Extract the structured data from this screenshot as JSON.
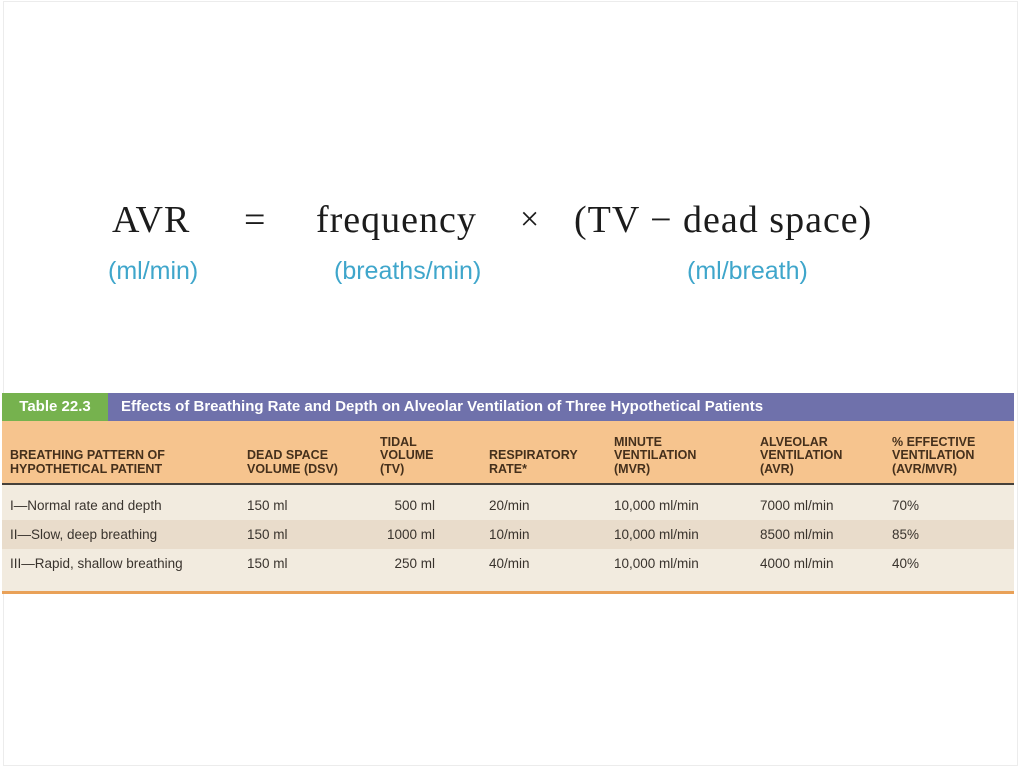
{
  "formula": {
    "result": "AVR",
    "equals_sign": "=",
    "factor1": "frequency",
    "multiply_sign": "×",
    "factor2": "(TV − dead space)",
    "result_unit": "(ml/min)",
    "factor1_unit": "(breaths/min)",
    "factor2_unit": "(ml/breath)",
    "unit_color": "#3fa6cb"
  },
  "table": {
    "label": "Table 22.3",
    "title": "Effects of Breathing Rate and Depth on Alveolar Ventilation of Three Hypothetical Patients",
    "columns": [
      "BREATHING PATTERN OF\nHYPOTHETICAL PATIENT",
      "DEAD SPACE\nVOLUME (DSV)",
      "TIDAL\nVOLUME\n(TV)",
      "RESPIRATORY\nRATE*",
      "MINUTE\nVENTILATION\n(MVR)",
      "ALVEOLAR\nVENTILATION\n(AVR)",
      "% EFFECTIVE\nVENTILATION\n(AVR/MVR)"
    ],
    "rows": [
      [
        "I—Normal rate and depth",
        "150 ml",
        "500 ml",
        "20/min",
        "10,000 ml/min",
        "7000 ml/min",
        "70%"
      ],
      [
        "II—Slow, deep breathing",
        "150 ml",
        "1000 ml",
        "10/min",
        "10,000 ml/min",
        "8500 ml/min",
        "85%"
      ],
      [
        "III—Rapid, shallow breathing",
        "150 ml",
        "250 ml",
        "40/min",
        "10,000 ml/min",
        "4000 ml/min",
        "40%"
      ]
    ],
    "colors": {
      "label_bg": "#76b24e",
      "title_bg": "#6f71ab",
      "header_bg": "#f6c48e",
      "body_bg": "#f2ebdf",
      "alt_row_bg": "#e9dccb",
      "bottom_rule": "#e9a158",
      "header_text": "#45301c",
      "body_text": "#39332d"
    }
  }
}
